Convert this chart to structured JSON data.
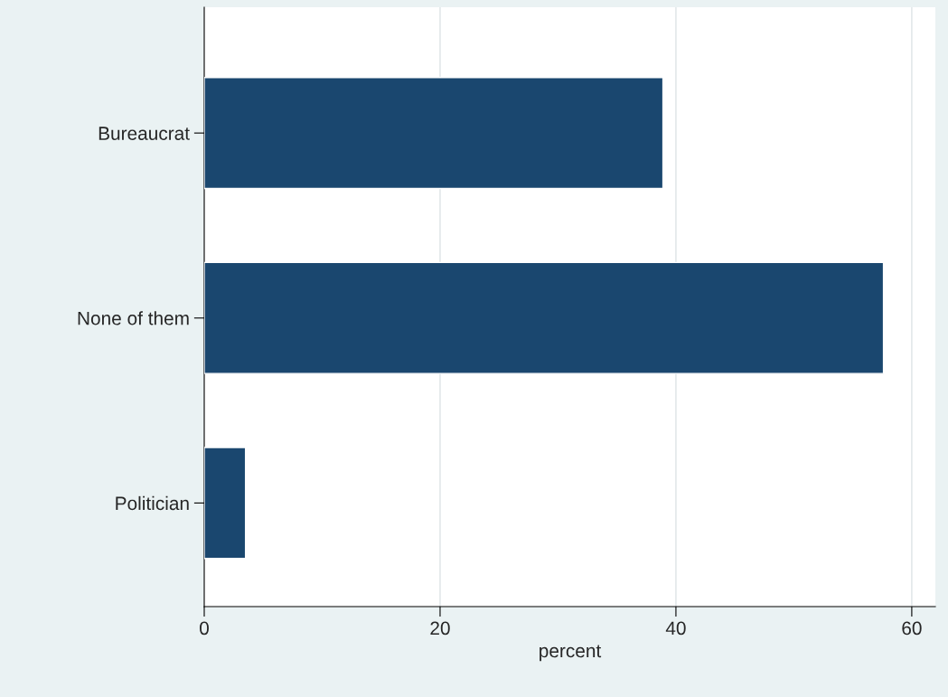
{
  "chart_data": {
    "type": "bar",
    "orientation": "horizontal",
    "xlabel": "percent",
    "categories": [
      "Bureaucrat",
      "None of them",
      "Politician"
    ],
    "values": [
      38.9,
      57.6,
      3.5
    ],
    "color": "#1a476f",
    "xlim": [
      0,
      62
    ],
    "xticks": [
      0,
      20,
      40,
      60
    ],
    "grid": "x"
  }
}
